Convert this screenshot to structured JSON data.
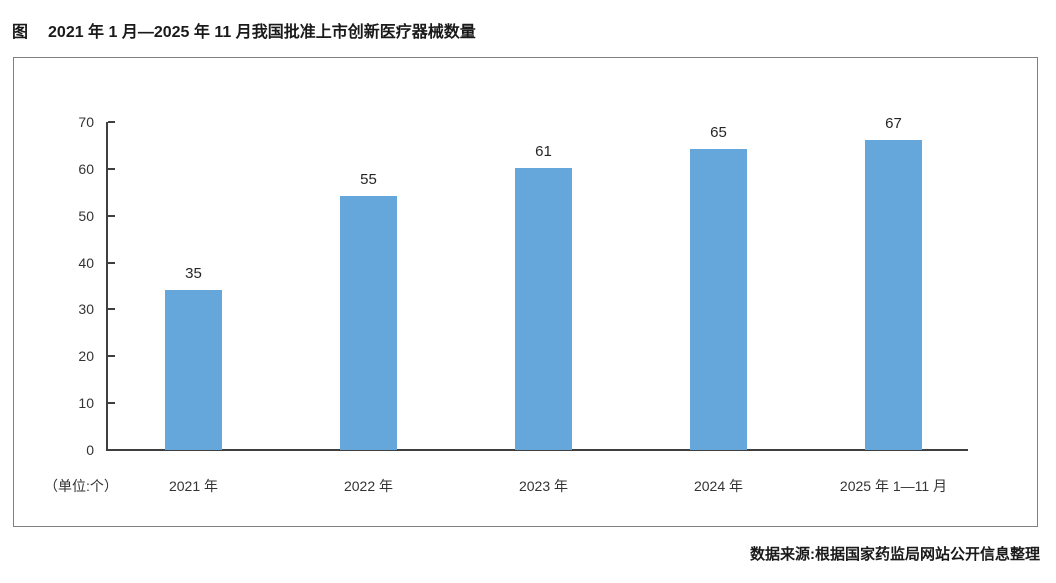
{
  "figure_label": "图",
  "title": "2021 年 1 月—2025 年 11 月我国批准上市创新医疗器械数量",
  "source": "数据来源:根据国家药监局网站公开信息整理",
  "colors": {
    "bar": "#65A6DB",
    "axis": "#3f3f3f",
    "panel_border": "#808080",
    "text": "#262626"
  },
  "chart_data": {
    "type": "bar",
    "categories": [
      "2021 年",
      "2022 年",
      "2023 年",
      "2024 年",
      "2025 年 1—11 月"
    ],
    "values": [
      35,
      55,
      61,
      65,
      67
    ],
    "data_labels": [
      "35",
      "55",
      "61",
      "65",
      "67"
    ],
    "title": "2021 年 1 月—2025 年 11 月我国批准上市创新医疗器械数量",
    "xlabel": "",
    "ylabel": "（单位:个）",
    "ylim": [
      0,
      70
    ],
    "yticks": [
      0,
      10,
      20,
      30,
      40,
      50,
      60,
      70
    ],
    "grid": false,
    "legend": null,
    "bar_color": "#65A6DB"
  }
}
